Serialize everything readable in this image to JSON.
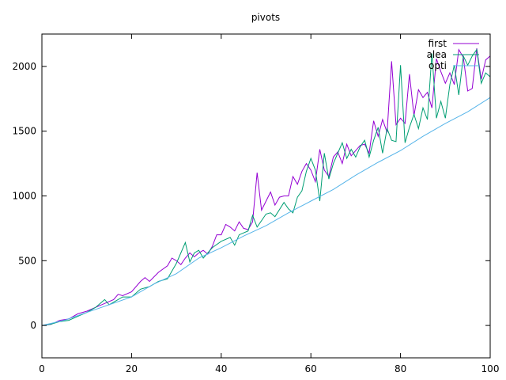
{
  "chart_data": {
    "type": "line",
    "title": "pivots",
    "xlabel": "",
    "ylabel": "",
    "xlim": [
      0,
      100
    ],
    "ylim": [
      -250,
      2250
    ],
    "xticks": [
      0,
      20,
      40,
      60,
      80,
      100
    ],
    "yticks": [
      0,
      500,
      1000,
      1500,
      2000
    ],
    "grid": false,
    "legend_position": "top-right",
    "series": [
      {
        "name": "first",
        "color": "#9400d3",
        "x": [
          0,
          2,
          4,
          6,
          8,
          10,
          12,
          14,
          16,
          17,
          18,
          20,
          22,
          23,
          24,
          26,
          28,
          29,
          30,
          31,
          32,
          33,
          34,
          35,
          36,
          37,
          38,
          39,
          40,
          41,
          42,
          43,
          44,
          45,
          46,
          47,
          48,
          49,
          50,
          51,
          52,
          53,
          54,
          55,
          56,
          57,
          58,
          59,
          60,
          61,
          62,
          63,
          64,
          65,
          66,
          67,
          68,
          69,
          70,
          71,
          72,
          73,
          74,
          75,
          76,
          77,
          78,
          79,
          80,
          81,
          82,
          83,
          84,
          85,
          86,
          87,
          88,
          89,
          90,
          91,
          92,
          93,
          94,
          95,
          96,
          97,
          98,
          99,
          100
        ],
        "y": [
          0,
          8,
          40,
          50,
          90,
          110,
          140,
          170,
          200,
          240,
          230,
          260,
          340,
          370,
          340,
          410,
          460,
          520,
          500,
          470,
          520,
          560,
          530,
          560,
          580,
          550,
          610,
          700,
          700,
          780,
          760,
          730,
          800,
          750,
          740,
          800,
          1180,
          890,
          960,
          1030,
          930,
          990,
          1000,
          1000,
          1150,
          1090,
          1190,
          1250,
          1200,
          1110,
          1360,
          1200,
          1150,
          1300,
          1340,
          1250,
          1400,
          1310,
          1350,
          1390,
          1400,
          1330,
          1580,
          1460,
          1590,
          1490,
          2040,
          1550,
          1600,
          1560,
          1940,
          1620,
          1820,
          1760,
          1800,
          1680,
          2060,
          1960,
          1870,
          1950,
          1860,
          2130,
          2070,
          1810,
          1830,
          2140,
          1900,
          2050,
          2080
        ]
      },
      {
        "name": "alea",
        "color": "#009e73",
        "x": [
          0,
          2,
          4,
          6,
          8,
          10,
          12,
          14,
          15,
          16,
          18,
          20,
          22,
          24,
          26,
          28,
          30,
          32,
          33,
          34,
          35,
          36,
          38,
          40,
          42,
          43,
          44,
          46,
          47,
          48,
          50,
          51,
          52,
          54,
          55,
          56,
          57,
          58,
          59,
          60,
          61,
          62,
          63,
          64,
          65,
          66,
          67,
          68,
          69,
          70,
          71,
          72,
          73,
          74,
          75,
          76,
          77,
          78,
          79,
          80,
          81,
          82,
          83,
          84,
          85,
          86,
          87,
          88,
          89,
          90,
          91,
          92,
          93,
          94,
          95,
          96,
          97,
          98,
          99,
          100
        ],
        "y": [
          0,
          10,
          30,
          40,
          70,
          100,
          140,
          200,
          160,
          180,
          220,
          220,
          280,
          300,
          340,
          360,
          480,
          640,
          490,
          560,
          580,
          520,
          600,
          650,
          680,
          620,
          700,
          730,
          850,
          760,
          860,
          870,
          840,
          950,
          900,
          870,
          990,
          1040,
          1190,
          1290,
          1200,
          960,
          1330,
          1130,
          1250,
          1330,
          1410,
          1290,
          1360,
          1300,
          1380,
          1430,
          1300,
          1430,
          1530,
          1330,
          1520,
          1430,
          1420,
          2010,
          1410,
          1530,
          1630,
          1520,
          1680,
          1590,
          2100,
          1600,
          1730,
          1600,
          1860,
          2010,
          1780,
          2080,
          2010,
          2080,
          2130,
          1870,
          1950,
          1920
        ]
      },
      {
        "name": "opti",
        "color": "#56b4e9",
        "x": [
          0,
          5,
          10,
          15,
          20,
          25,
          30,
          35,
          40,
          45,
          50,
          55,
          60,
          65,
          70,
          75,
          80,
          85,
          90,
          95,
          100
        ],
        "y": [
          0,
          40,
          100,
          160,
          220,
          320,
          400,
          520,
          600,
          690,
          770,
          870,
          960,
          1050,
          1160,
          1260,
          1350,
          1460,
          1560,
          1650,
          1760
        ]
      }
    ]
  }
}
